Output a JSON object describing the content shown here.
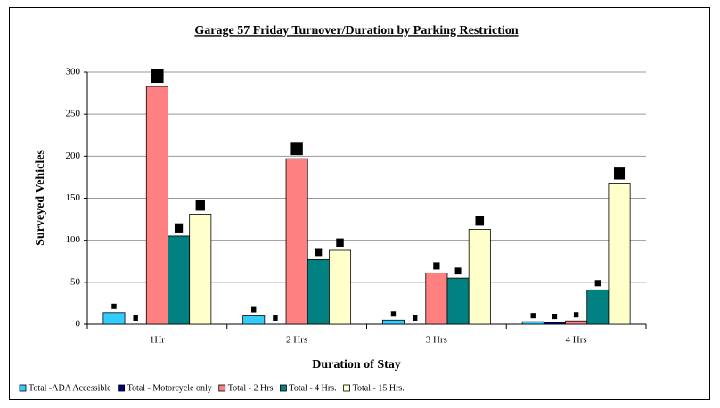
{
  "chart_data": {
    "type": "bar",
    "title": "Garage 57 Friday Turnover/Duration by Parking Restriction",
    "x_label": "Duration of Stay",
    "y_label": "Surveyed Vehicles",
    "categories": [
      "1Hr",
      "2 Hrs",
      "3 Hrs",
      "4 Hrs"
    ],
    "series": [
      {
        "name": "Total -ADA Accessible",
        "color": "#33ccff",
        "values": [
          14,
          10,
          5,
          3
        ]
      },
      {
        "name": "Total - Motorcycle only",
        "color": "#000080",
        "values": [
          0,
          0,
          0,
          2
        ]
      },
      {
        "name": "Total - 2 Hrs",
        "color": "#ff8080",
        "values": [
          283,
          197,
          61,
          4
        ]
      },
      {
        "name": "Total - 4 Hrs.",
        "color": "#008080",
        "values": [
          105,
          77,
          55,
          41
        ]
      },
      {
        "name": "Total - 15 Hrs.",
        "color": "#ffffcc",
        "values": [
          131,
          88,
          113,
          168
        ]
      }
    ],
    "ylim": [
      0,
      300
    ],
    "yticks": [
      0,
      50,
      100,
      150,
      200,
      250,
      300
    ],
    "grid": true
  }
}
